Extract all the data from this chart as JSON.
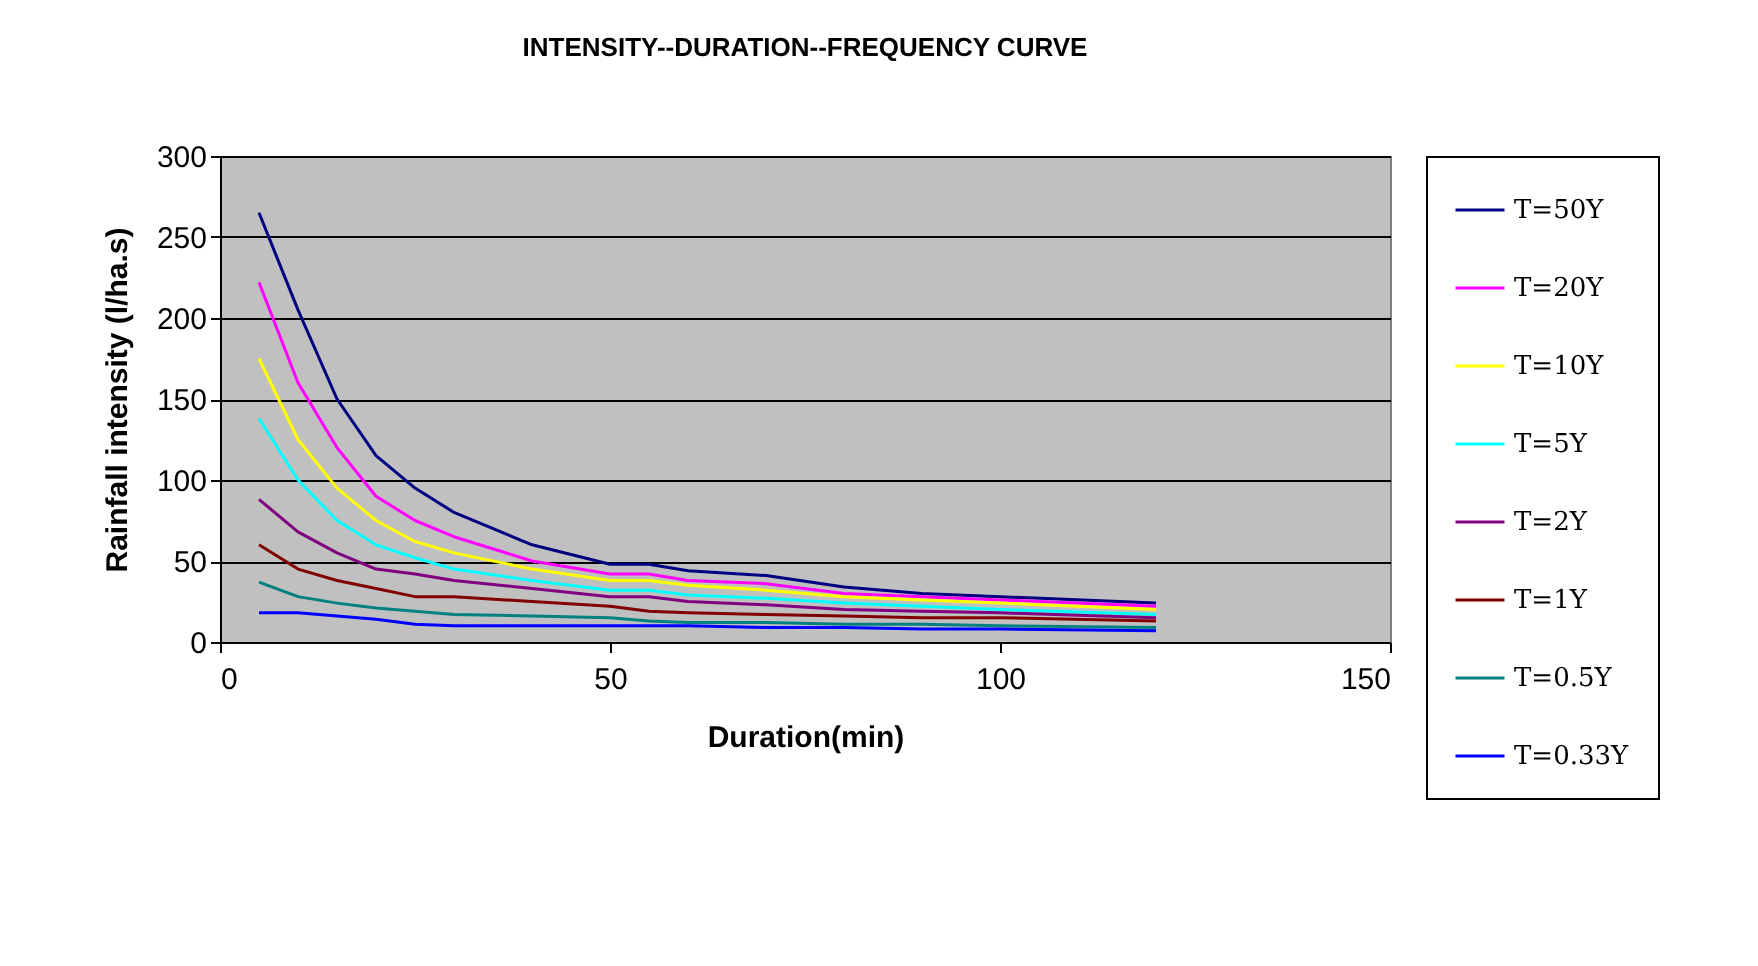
{
  "chart_data": {
    "type": "line",
    "title": "INTENSITY--DURATION--FREQUENCY CURVE",
    "xlabel": "Duration(min)",
    "ylabel": "Rainfall intensity (l/ha.s)",
    "x": [
      5,
      10,
      15,
      20,
      25,
      30,
      40,
      50,
      55,
      60,
      70,
      80,
      90,
      100,
      120
    ],
    "series": [
      {
        "name": "T=50Y",
        "color": "#000080",
        "values": [
          265,
          205,
          150,
          115,
          95,
          80,
          60,
          48,
          48,
          44,
          41,
          34,
          30,
          28,
          24
        ]
      },
      {
        "name": "T=20Y",
        "color": "#ff00ff",
        "values": [
          222,
          160,
          120,
          90,
          75,
          65,
          50,
          42,
          42,
          38,
          36,
          30,
          28,
          26,
          22
        ]
      },
      {
        "name": "T=10Y",
        "color": "#ffff00",
        "values": [
          175,
          125,
          95,
          75,
          62,
          55,
          45,
          38,
          38,
          35,
          32,
          28,
          26,
          24,
          20
        ]
      },
      {
        "name": "T=5Y",
        "color": "#00ffff",
        "values": [
          138,
          100,
          75,
          60,
          52,
          45,
          38,
          32,
          32,
          29,
          27,
          24,
          22,
          20,
          17
        ]
      },
      {
        "name": "T=2Y",
        "color": "#800080",
        "values": [
          88,
          68,
          55,
          45,
          42,
          38,
          33,
          28,
          28,
          25,
          23,
          20,
          19,
          18,
          15
        ]
      },
      {
        "name": "T=1Y",
        "color": "#800000",
        "values": [
          60,
          45,
          38,
          33,
          28,
          28,
          25,
          22,
          19,
          18,
          17,
          16,
          15,
          15,
          13
        ]
      },
      {
        "name": "T=0.5Y",
        "color": "#008080",
        "values": [
          37,
          28,
          24,
          21,
          19,
          17,
          16,
          15,
          13,
          12,
          12,
          11,
          11,
          10,
          9
        ]
      },
      {
        "name": "T=0.33Y",
        "color": "#0000ff",
        "values": [
          18,
          18,
          16,
          14,
          11,
          10,
          10,
          10,
          10,
          10,
          9,
          9,
          8,
          8,
          7
        ]
      }
    ],
    "xlim": [
      0,
      150
    ],
    "xticks": [
      0,
      50,
      100,
      150
    ],
    "ylim": [
      0,
      300
    ],
    "yticks": [
      0,
      50,
      100,
      150,
      200,
      250,
      300
    ],
    "grid": "y",
    "legend": "right",
    "marker": "none",
    "line_style": "solid"
  }
}
